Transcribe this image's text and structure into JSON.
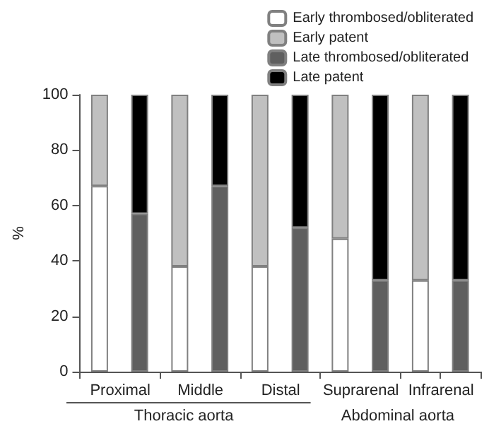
{
  "chart_data": {
    "type": "bar",
    "stacked": true,
    "ylabel": "%",
    "categories": [
      "Proximal",
      null,
      "Middle",
      null,
      "Distal",
      null,
      "Suprarenal",
      null,
      "Infrarenal",
      null
    ],
    "series": [
      {
        "name": "Early thrombosed/obliterated",
        "color": "#ffffff",
        "values": [
          67,
          null,
          38,
          null,
          38,
          null,
          48,
          null,
          33,
          null
        ]
      },
      {
        "name": "Early patent",
        "color": "#c0c0c0",
        "values": [
          33,
          null,
          62,
          null,
          62,
          null,
          52,
          null,
          67,
          null
        ]
      },
      {
        "name": "Late thrombosed/obliterated",
        "color": "#5f5f5f",
        "values": [
          null,
          57,
          null,
          67,
          null,
          52,
          null,
          33,
          null,
          33
        ]
      },
      {
        "name": "Late patent",
        "color": "#000000",
        "values": [
          null,
          43,
          null,
          33,
          null,
          48,
          null,
          67,
          null,
          67
        ]
      }
    ],
    "ylim": [
      0,
      100
    ],
    "yticks": [
      0,
      20,
      40,
      60,
      80,
      100
    ],
    "grid": false,
    "legend": "top right",
    "annotations": [
      "Thoracic aorta",
      "Abdominal aorta"
    ]
  }
}
